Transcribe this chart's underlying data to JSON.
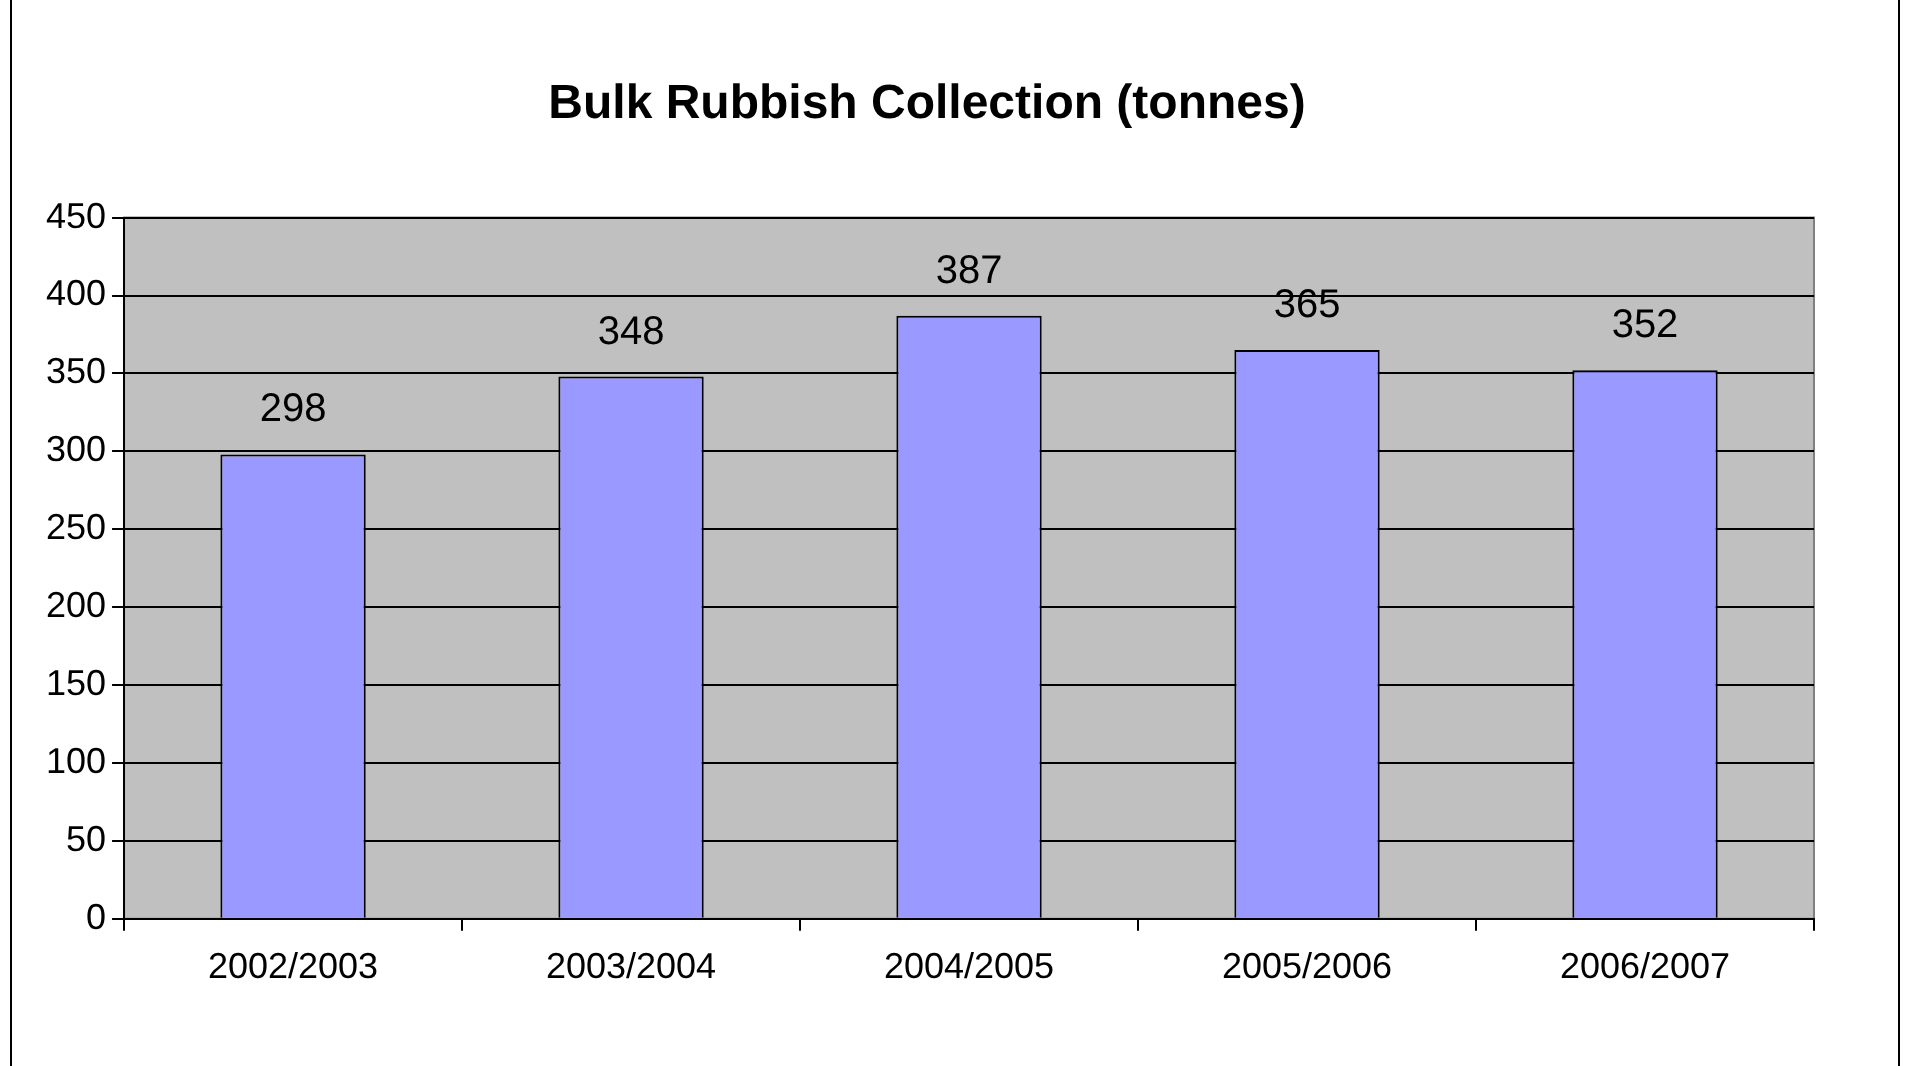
{
  "chart_data": {
    "type": "bar",
    "title": "Bulk Rubbish Collection (tonnes)",
    "categories": [
      "2002/2003",
      "2003/2004",
      "2004/2005",
      "2005/2006",
      "2006/2007"
    ],
    "values": [
      298,
      348,
      387,
      365,
      352
    ],
    "color": "#9999ff",
    "ylim": [
      0,
      450
    ],
    "yticks": [
      0,
      50,
      100,
      150,
      200,
      250,
      300,
      350,
      400,
      450
    ],
    "grid": "y",
    "data_labels": true,
    "legend": false
  }
}
